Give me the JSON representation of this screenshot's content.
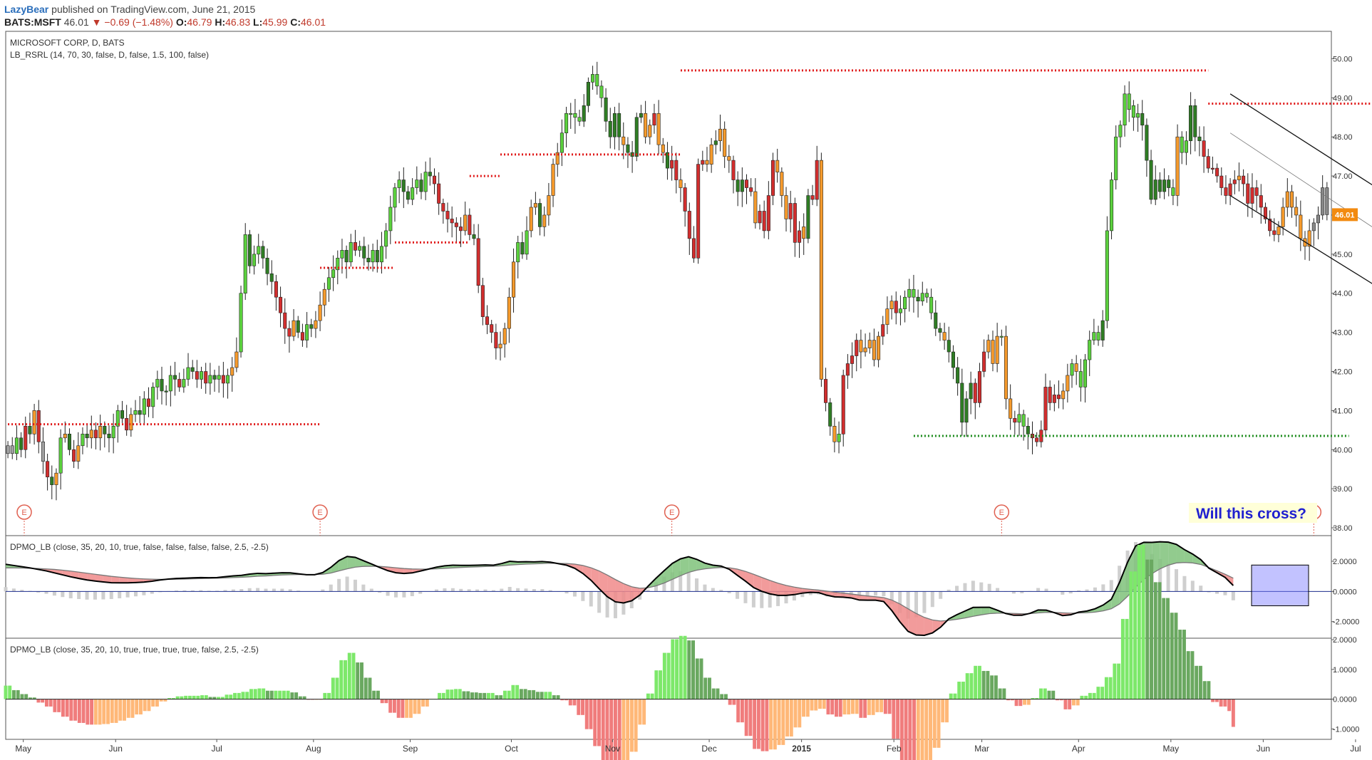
{
  "header": {
    "author": "LazyBear",
    "published": "published on TradingView.com, June 21, 2015",
    "symbol": "BATS:MSFT",
    "last": "46.01",
    "change": "▼ −0.69 (−1.48%)",
    "o_label": "O:",
    "o_value": "46.79",
    "h_label": "H:",
    "h_value": "46.83",
    "l_label": "L:",
    "l_value": "45.99",
    "c_label": "C:",
    "c_value": "46.01"
  },
  "chart_data": {
    "type": "candlestick",
    "title": "MICROSOFT CORP, D, BATS",
    "indicator_main": "LB_RSRL (14, 70, 30, false, D, false, 1.5, 100, false)",
    "price_axis": {
      "ticks": [
        "50.00",
        "49.00",
        "48.00",
        "47.00",
        "46.00",
        "45.00",
        "44.00",
        "43.00",
        "42.00",
        "41.00",
        "40.00",
        "39.00",
        "38.00"
      ],
      "min": 37.8,
      "max": 50.7
    },
    "last_price_label": "46.01",
    "x_axis_labels": [
      "May",
      "Jun",
      "Jul",
      "Aug",
      "Sep",
      "Oct",
      "Nov",
      "Dec",
      "2015",
      "Feb",
      "Mar",
      "Apr",
      "May",
      "Jun",
      "Jul"
    ],
    "earnings_label": "E",
    "annotation": "Will this cross?",
    "horizontal_levels": [
      {
        "start": 0,
        "end": 71,
        "price": 40.65,
        "kind": "resistance"
      },
      {
        "start": 71,
        "end": 88,
        "price": 44.65,
        "kind": "resistance"
      },
      {
        "start": 88,
        "end": 105,
        "price": 45.3,
        "kind": "resistance"
      },
      {
        "start": 105,
        "end": 112,
        "price": 47.0,
        "kind": "resistance"
      },
      {
        "start": 112,
        "end": 153,
        "price": 47.55,
        "kind": "resistance"
      },
      {
        "start": 153,
        "end": 273,
        "price": 49.7,
        "kind": "resistance"
      },
      {
        "start": 273,
        "end": 310,
        "price": 48.85,
        "kind": "resistance"
      },
      {
        "start": 206,
        "end": 305,
        "price": 40.35,
        "kind": "support"
      }
    ],
    "channel_lines": [
      {
        "x1": 278,
        "p1": 49.1,
        "x2": 321,
        "p2": 46.0
      },
      {
        "x1": 278,
        "p1": 48.1,
        "x2": 321,
        "p2": 44.9
      },
      {
        "x1": 278,
        "p1": 46.5,
        "x2": 321,
        "p2": 43.5
      }
    ],
    "closes": [
      40.1,
      39.9,
      40.3,
      40.0,
      40.6,
      40.4,
      41.0,
      40.2,
      39.7,
      39.3,
      39.1,
      39.4,
      40.3,
      40.4,
      40.0,
      39.7,
      40.1,
      40.4,
      40.3,
      40.5,
      40.3,
      40.6,
      40.4,
      40.3,
      40.6,
      41.0,
      40.8,
      40.5,
      40.9,
      41.0,
      40.9,
      41.3,
      41.1,
      41.6,
      41.8,
      41.5,
      41.5,
      41.9,
      41.8,
      41.6,
      41.8,
      42.1,
      42.0,
      41.8,
      42.0,
      41.7,
      41.9,
      41.8,
      41.9,
      41.7,
      41.9,
      42.1,
      42.5,
      44.0,
      45.5,
      44.7,
      45.0,
      45.2,
      44.9,
      44.5,
      44.3,
      43.9,
      43.5,
      43.1,
      42.9,
      43.3,
      43.0,
      42.8,
      43.2,
      43.1,
      43.3,
      43.7,
      44.1,
      44.4,
      44.6,
      44.9,
      45.1,
      44.8,
      45.3,
      45.1,
      45.2,
      44.9,
      44.8,
      45.1,
      44.8,
      45.2,
      45.6,
      46.2,
      46.7,
      46.9,
      46.6,
      46.4,
      46.7,
      46.9,
      46.6,
      47.1,
      47.0,
      46.8,
      46.3,
      46.1,
      45.9,
      45.8,
      45.7,
      45.6,
      46.0,
      45.5,
      45.4,
      44.2,
      43.4,
      43.2,
      43.0,
      42.6,
      42.7,
      43.1,
      43.9,
      44.8,
      45.3,
      45.0,
      45.6,
      46.2,
      46.3,
      45.7,
      46.0,
      46.5,
      47.3,
      47.6,
      48.1,
      48.6,
      48.6,
      48.5,
      48.4,
      48.8,
      49.4,
      49.6,
      49.3,
      49.0,
      48.4,
      48.0,
      48.6,
      48.0,
      47.8,
      47.6,
      47.5,
      48.5,
      48.6,
      48.0,
      48.3,
      48.6,
      47.8,
      47.6,
      47.2,
      47.4,
      46.9,
      46.7,
      46.1,
      45.4,
      44.9,
      47.3,
      47.4,
      47.3,
      47.8,
      47.9,
      48.2,
      47.5,
      47.4,
      46.9,
      46.6,
      46.9,
      46.7,
      46.6,
      45.8,
      46.1,
      45.6,
      46.5,
      47.4,
      47.1,
      46.5,
      45.9,
      46.3,
      45.3,
      45.6,
      45.4,
      46.5,
      46.4,
      47.4,
      41.8,
      41.2,
      40.6,
      40.2,
      40.4,
      41.9,
      42.2,
      42.4,
      42.8,
      42.5,
      42.6,
      42.8,
      42.3,
      42.9,
      43.2,
      43.6,
      43.8,
      43.5,
      43.6,
      43.9,
      44.1,
      43.9,
      43.8,
      44.0,
      43.9,
      43.5,
      43.1,
      43.0,
      42.8,
      42.5,
      42.1,
      41.7,
      40.7,
      41.3,
      41.7,
      41.2,
      42.0,
      42.5,
      42.8,
      42.2,
      42.9,
      42.9,
      41.3,
      40.8,
      40.7,
      40.9,
      40.6,
      40.4,
      40.3,
      40.2,
      40.5,
      41.6,
      41.2,
      41.4,
      41.3,
      41.5,
      41.9,
      42.2,
      42.0,
      41.6,
      42.3,
      42.8,
      43.0,
      42.8,
      43.3,
      45.6,
      46.9,
      48.0,
      48.3,
      49.1,
      48.7,
      48.5,
      48.6,
      48.3,
      47.4,
      46.4,
      46.9,
      46.6,
      46.9,
      46.7,
      46.5,
      48.0,
      47.6,
      47.9,
      48.8,
      48.0,
      47.9,
      47.5,
      47.2,
      47.2,
      47.0,
      46.7,
      46.5,
      46.8,
      46.9,
      47.0,
      46.8,
      46.3,
      46.7,
      46.5,
      46.2,
      45.9,
      45.6,
      45.5,
      45.7,
      46.2,
      46.6,
      46.2,
      46.0,
      45.4,
      45.2,
      45.6,
      45.8,
      46.0,
      46.7,
      46.01
    ],
    "bar_colors": [
      "c",
      "c",
      "l",
      "d",
      "r",
      "d",
      "o",
      "r",
      "c",
      "r",
      "d",
      "o",
      "l",
      "o",
      "d",
      "r",
      "o",
      "l",
      "d",
      "o",
      "r",
      "o",
      "d",
      "d",
      "l",
      "l",
      "d",
      "r",
      "o",
      "l",
      "d",
      "l",
      "r",
      "l",
      "l",
      "d",
      "d",
      "l",
      "d",
      "r",
      "l",
      "l",
      "d",
      "r",
      "l",
      "r",
      "l",
      "d",
      "l",
      "r",
      "l",
      "o",
      "o",
      "l",
      "l",
      "d",
      "l",
      "l",
      "d",
      "d",
      "d",
      "r",
      "r",
      "r",
      "r",
      "o",
      "d",
      "r",
      "l",
      "d",
      "o",
      "o",
      "o",
      "l",
      "l",
      "l",
      "l",
      "d",
      "l",
      "r",
      "l",
      "d",
      "d",
      "l",
      "d",
      "l",
      "l",
      "l",
      "l",
      "l",
      "d",
      "d",
      "l",
      "l",
      "d",
      "l",
      "d",
      "r",
      "r",
      "r",
      "r",
      "r",
      "r",
      "r",
      "o",
      "r",
      "d",
      "r",
      "r",
      "r",
      "r",
      "r",
      "o",
      "o",
      "o",
      "o",
      "l",
      "d",
      "l",
      "o",
      "o",
      "d",
      "o",
      "o",
      "o",
      "o",
      "l",
      "l",
      "l",
      "l",
      "l",
      "d",
      "d",
      "l",
      "l",
      "l",
      "d",
      "d",
      "d",
      "d",
      "o",
      "d",
      "d",
      "d",
      "d",
      "o",
      "o",
      "r",
      "o",
      "o",
      "d",
      "r",
      "r",
      "o",
      "r",
      "r",
      "r",
      "r",
      "r",
      "o",
      "o",
      "d",
      "o",
      "o",
      "o",
      "r",
      "d",
      "d",
      "r",
      "r",
      "o",
      "r",
      "r",
      "r",
      "r",
      "o",
      "o",
      "o",
      "r",
      "r",
      "r",
      "o",
      "d",
      "r",
      "r",
      "o",
      "r",
      "d",
      "o",
      "l",
      "r",
      "r",
      "r",
      "r",
      "o",
      "o",
      "o",
      "o",
      "o",
      "r",
      "o",
      "o",
      "r",
      "l",
      "l",
      "l",
      "l",
      "d",
      "l",
      "l",
      "l",
      "d",
      "d",
      "o",
      "d",
      "d",
      "d",
      "d",
      "d",
      "d",
      "r",
      "r",
      "r",
      "o",
      "o",
      "o",
      "l",
      "o",
      "o",
      "r",
      "l",
      "l",
      "d",
      "r",
      "r",
      "r",
      "r",
      "r",
      "r",
      "r",
      "o",
      "o",
      "l",
      "o",
      "l",
      "l",
      "l",
      "l",
      "l",
      "d",
      "l",
      "l",
      "l",
      "l",
      "l",
      "l",
      "l",
      "l",
      "d",
      "d",
      "d",
      "d",
      "d",
      "d",
      "d",
      "l",
      "o",
      "l",
      "l",
      "d",
      "d",
      "d",
      "r",
      "r",
      "r",
      "r",
      "r",
      "r",
      "r",
      "r",
      "o",
      "r",
      "r",
      "r",
      "r",
      "r",
      "r",
      "r",
      "r",
      "o",
      "o",
      "o",
      "o",
      "o",
      "o",
      "o",
      "o"
    ],
    "gap_after_bar": [
      180,
      255
    ],
    "indicator_panels": [
      {
        "name": "DPMO_LB (close, 35, 20, 10, true, false, false, false, false, 2.5, -2.5)",
        "axis": [
          "2.0000",
          "0.0000",
          "-2.0000"
        ],
        "ylim": [
          -3.1,
          3.7
        ],
        "pmo": [
          1.8,
          1.72,
          1.64,
          1.56,
          1.46,
          1.36,
          1.23,
          1.1,
          0.97,
          0.86,
          0.76,
          0.69,
          0.63,
          0.58,
          0.57,
          0.57,
          0.59,
          0.62,
          0.68,
          0.76,
          0.82,
          0.86,
          0.88,
          0.9,
          0.92,
          0.91,
          0.92,
          0.98,
          1.03,
          1.07,
          1.15,
          1.2,
          1.18,
          1.21,
          1.24,
          1.23,
          1.17,
          1.11,
          1.11,
          1.25,
          1.6,
          2.05,
          2.32,
          2.26,
          2.04,
          1.82,
          1.59,
          1.38,
          1.24,
          1.19,
          1.23,
          1.35,
          1.48,
          1.61,
          1.7,
          1.74,
          1.73,
          1.73,
          1.74,
          1.76,
          1.74,
          1.85,
          2.0,
          1.96,
          1.97,
          1.96,
          1.98,
          1.94,
          1.84,
          1.74,
          1.53,
          1.19,
          0.74,
          0.18,
          -0.35,
          -0.69,
          -0.76,
          -0.62,
          -0.24,
          0.34,
          0.88,
          1.38,
          1.86,
          2.16,
          2.3,
          2.13,
          1.88,
          1.74,
          1.68,
          1.47,
          1.07,
          0.68,
          0.26,
          0.01,
          -0.16,
          -0.26,
          -0.26,
          -0.21,
          -0.11,
          -0.06,
          -0.08,
          -0.25,
          -0.36,
          -0.38,
          -0.43,
          -0.57,
          -0.58,
          -0.58,
          -0.67,
          -1.27,
          -2.02,
          -2.65,
          -2.89,
          -2.91,
          -2.75,
          -2.37,
          -1.82,
          -1.54,
          -1.3,
          -1.06,
          -1.05,
          -1.05,
          -1.25,
          -1.46,
          -1.58,
          -1.58,
          -1.45,
          -1.23,
          -1.24,
          -1.41,
          -1.6,
          -1.55,
          -1.37,
          -1.3,
          -1.15,
          -0.9,
          -0.52,
          0.59,
          1.94,
          3.02,
          3.26,
          3.25,
          3.29,
          3.27,
          3.12,
          2.77,
          2.48,
          2.11,
          1.54,
          1.24,
          0.93,
          0.39
        ],
        "signal": [
          1.56,
          1.56,
          1.55,
          1.53,
          1.52,
          1.49,
          1.46,
          1.41,
          1.35,
          1.28,
          1.21,
          1.14,
          1.07,
          1.0,
          0.95,
          0.9,
          0.86,
          0.83,
          0.81,
          0.8,
          0.8,
          0.81,
          0.82,
          0.84,
          0.85,
          0.87,
          0.88,
          0.9,
          0.92,
          0.94,
          0.97,
          1.01,
          1.03,
          1.06,
          1.09,
          1.11,
          1.12,
          1.12,
          1.12,
          1.14,
          1.22,
          1.36,
          1.5,
          1.61,
          1.66,
          1.67,
          1.66,
          1.62,
          1.57,
          1.52,
          1.49,
          1.48,
          1.48,
          1.5,
          1.53,
          1.56,
          1.59,
          1.61,
          1.63,
          1.65,
          1.67,
          1.7,
          1.75,
          1.78,
          1.81,
          1.83,
          1.85,
          1.87,
          1.86,
          1.85,
          1.81,
          1.72,
          1.57,
          1.36,
          1.09,
          0.79,
          0.52,
          0.31,
          0.21,
          0.24,
          0.37,
          0.56,
          0.8,
          1.04,
          1.26,
          1.41,
          1.5,
          1.55,
          1.59,
          1.57,
          1.48,
          1.33,
          1.14,
          0.93,
          0.73,
          0.55,
          0.4,
          0.29,
          0.2,
          0.14,
          0.09,
          0.02,
          -0.05,
          -0.11,
          -0.17,
          -0.24,
          -0.3,
          -0.35,
          -0.41,
          -0.57,
          -0.83,
          -1.15,
          -1.46,
          -1.72,
          -1.89,
          -1.96,
          -1.92,
          -1.85,
          -1.76,
          -1.65,
          -1.55,
          -1.47,
          -1.44,
          -1.44,
          -1.46,
          -1.48,
          -1.47,
          -1.42,
          -1.39,
          -1.39,
          -1.42,
          -1.44,
          -1.43,
          -1.41,
          -1.37,
          -1.29,
          -1.15,
          -0.83,
          -0.32,
          0.29,
          0.79,
          1.18,
          1.5,
          1.74,
          1.89,
          1.92,
          1.89,
          1.79,
          1.59,
          1.37,
          1.14,
          0.88
        ]
      },
      {
        "name": "DPMO_LB (close, 35, 20, 10, true, true, true, true, false, 2.5, -2.5)",
        "axis": [
          "2.0000",
          "1.0000",
          "0.0000",
          "-1.0000"
        ],
        "ylim": [
          -1.35,
          2.05
        ]
      }
    ]
  }
}
